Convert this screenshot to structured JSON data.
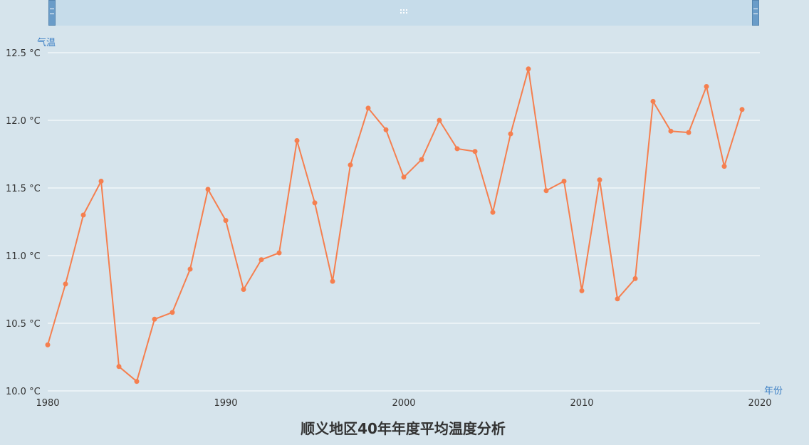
{
  "chart_data": {
    "type": "line",
    "title": "顺义地区40年年度平均温度分析",
    "xlabel": "年份",
    "ylabel": "气温",
    "y_unit": "°C",
    "xlim": [
      1980,
      2020
    ],
    "ylim": [
      10.0,
      12.5
    ],
    "x_ticks": [
      "1980",
      "1990",
      "2000",
      "2010",
      "2020"
    ],
    "y_ticks": [
      "10.0 °C",
      "10.5 °C",
      "11.0 °C",
      "11.5 °C",
      "12.0 °C",
      "12.5 °C"
    ],
    "grid": true,
    "legend": "none",
    "line_color": "#f57f4f",
    "series": [
      {
        "name": "",
        "x": [
          1980,
          1981,
          1982,
          1983,
          1984,
          1985,
          1986,
          1987,
          1988,
          1989,
          1990,
          1991,
          1992,
          1993,
          1994,
          1995,
          1996,
          1997,
          1998,
          1999,
          2000,
          2001,
          2002,
          2003,
          2004,
          2005,
          2006,
          2007,
          2008,
          2009,
          2010,
          2011,
          2012,
          2013,
          2014,
          2015,
          2016,
          2017,
          2018,
          2019
        ],
        "values": [
          10.34,
          10.79,
          11.3,
          11.55,
          10.18,
          10.07,
          10.53,
          10.58,
          10.9,
          11.49,
          11.26,
          10.75,
          10.97,
          11.02,
          11.85,
          11.39,
          10.81,
          11.67,
          12.09,
          11.93,
          11.58,
          11.71,
          12.0,
          11.79,
          11.77,
          11.32,
          11.9,
          12.38,
          11.48,
          11.55,
          10.74,
          11.56,
          10.68,
          10.83,
          12.14,
          11.92,
          11.91,
          12.25,
          11.66,
          12.08
        ]
      }
    ]
  },
  "data_zoom": {
    "handle_color": "#6a9cc8",
    "band_color": "#c6dcea"
  },
  "colors": {
    "background": "#d6e4ec",
    "grid": "#ffffff",
    "axis_title": "#3a7ec4",
    "text": "#333333"
  }
}
